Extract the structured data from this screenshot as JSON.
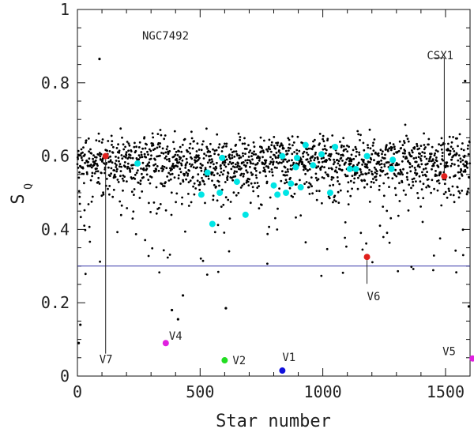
{
  "chart_data": {
    "type": "scatter",
    "title": "NGC7492",
    "xlabel": "Star number",
    "ylabel_main": "S",
    "ylabel_sub": "Q",
    "xlim": [
      0,
      1600
    ],
    "ylim": [
      0,
      1
    ],
    "xticks": [
      0,
      500,
      1000,
      1500
    ],
    "yticks": [
      0,
      0.2,
      0.4,
      0.6,
      0.8,
      1
    ],
    "ytick_labels": [
      "0",
      "0.2",
      "0.4",
      "0.6",
      "0.8",
      "1"
    ],
    "threshold": 0.3,
    "field_stars": {
      "count": 1600,
      "typical_range": [
        0.46,
        0.66
      ],
      "seed": 7492,
      "outliers": [
        {
          "x": 90,
          "y": 0.865
        },
        {
          "x": 12,
          "y": 0.14
        },
        {
          "x": 5,
          "y": 0.09
        },
        {
          "x": 385,
          "y": 0.18
        },
        {
          "x": 410,
          "y": 0.155
        },
        {
          "x": 430,
          "y": 0.22
        },
        {
          "x": 605,
          "y": 0.185
        },
        {
          "x": 1580,
          "y": 0.805
        },
        {
          "x": 1595,
          "y": 0.19
        }
      ]
    },
    "highlight_cyan": {
      "color": "#00e5e5",
      "points": [
        {
          "x": 245,
          "y": 0.58
        },
        {
          "x": 505,
          "y": 0.495
        },
        {
          "x": 530,
          "y": 0.555
        },
        {
          "x": 550,
          "y": 0.415
        },
        {
          "x": 580,
          "y": 0.5
        },
        {
          "x": 590,
          "y": 0.595
        },
        {
          "x": 650,
          "y": 0.53
        },
        {
          "x": 685,
          "y": 0.44
        },
        {
          "x": 800,
          "y": 0.52
        },
        {
          "x": 815,
          "y": 0.495
        },
        {
          "x": 835,
          "y": 0.6
        },
        {
          "x": 850,
          "y": 0.5
        },
        {
          "x": 870,
          "y": 0.525
        },
        {
          "x": 890,
          "y": 0.57
        },
        {
          "x": 895,
          "y": 0.595
        },
        {
          "x": 910,
          "y": 0.515
        },
        {
          "x": 930,
          "y": 0.63
        },
        {
          "x": 960,
          "y": 0.575
        },
        {
          "x": 995,
          "y": 0.605
        },
        {
          "x": 1030,
          "y": 0.5
        },
        {
          "x": 1050,
          "y": 0.625
        },
        {
          "x": 1110,
          "y": 0.565
        },
        {
          "x": 1135,
          "y": 0.565
        },
        {
          "x": 1180,
          "y": 0.6
        },
        {
          "x": 1280,
          "y": 0.565
        },
        {
          "x": 1285,
          "y": 0.59
        }
      ]
    },
    "variables": [
      {
        "label": "V7",
        "x": 115,
        "y": 0.6,
        "color": "#e0201c"
      },
      {
        "label": "CSX1",
        "x": 1495,
        "y": 0.545,
        "color": "#e0201c"
      },
      {
        "label": "V6",
        "x": 1180,
        "y": 0.325,
        "color": "#e0201c"
      },
      {
        "label": "V4",
        "x": 360,
        "y": 0.09,
        "color": "#e020e0"
      },
      {
        "label": "V2",
        "x": 600,
        "y": 0.043,
        "color": "#22dd22"
      },
      {
        "label": "V1",
        "x": 835,
        "y": 0.015,
        "color": "#1010dd"
      },
      {
        "label": "V5",
        "x": 1610,
        "y": 0.048,
        "color": "#e020e0"
      }
    ]
  }
}
